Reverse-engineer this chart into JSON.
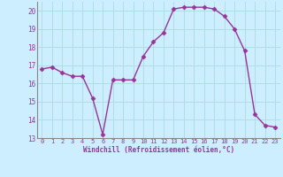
{
  "x": [
    0,
    1,
    2,
    3,
    4,
    5,
    6,
    7,
    8,
    9,
    10,
    11,
    12,
    13,
    14,
    15,
    16,
    17,
    18,
    19,
    20,
    21,
    22,
    23
  ],
  "y": [
    16.8,
    16.9,
    16.6,
    16.4,
    16.4,
    15.2,
    13.2,
    16.2,
    16.2,
    16.2,
    17.5,
    18.3,
    18.8,
    20.1,
    20.2,
    20.2,
    20.2,
    20.1,
    19.7,
    19.0,
    17.8,
    14.3,
    13.7,
    13.6
  ],
  "line_color": "#993399",
  "marker": "D",
  "markersize": 2.5,
  "linewidth": 1.0,
  "bg_color": "#cceeff",
  "grid_color": "#aadddd",
  "xlabel": "Windchill (Refroidissement éolien,°C)",
  "xlabel_color": "#993399",
  "tick_color": "#993399",
  "ylim": [
    13,
    20.5
  ],
  "xlim": [
    -0.5,
    23.5
  ],
  "yticks": [
    13,
    14,
    15,
    16,
    17,
    18,
    19,
    20
  ],
  "xticks": [
    0,
    1,
    2,
    3,
    4,
    5,
    6,
    7,
    8,
    9,
    10,
    11,
    12,
    13,
    14,
    15,
    16,
    17,
    18,
    19,
    20,
    21,
    22,
    23
  ]
}
